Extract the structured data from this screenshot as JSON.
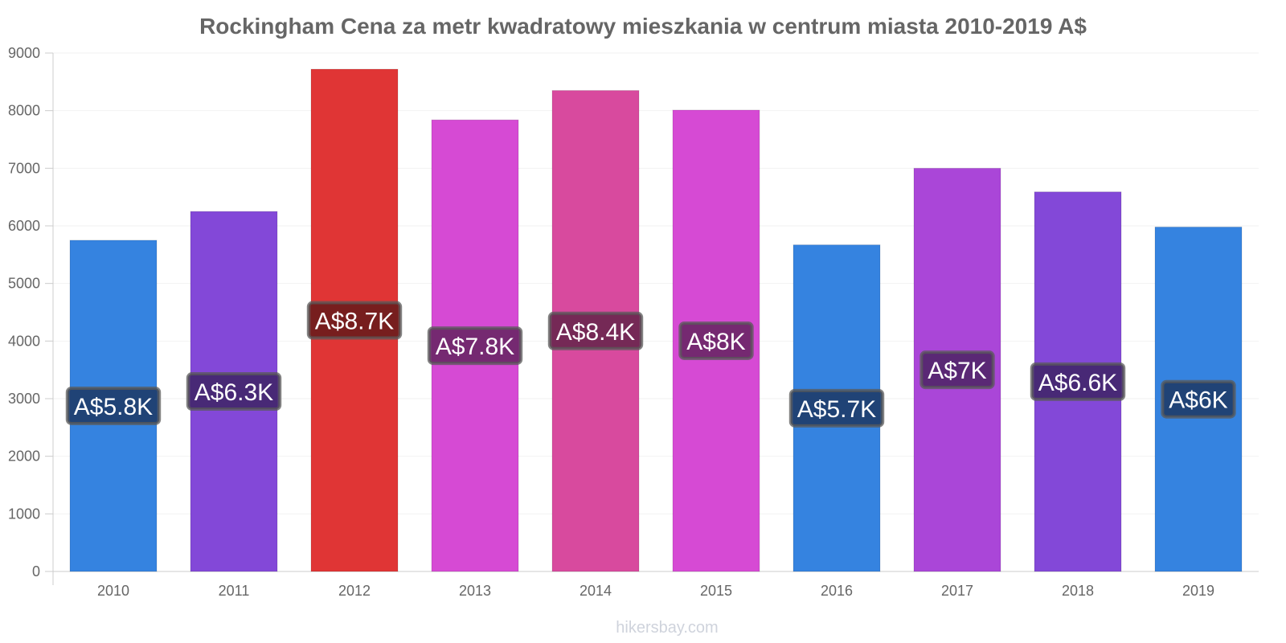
{
  "chart_data": {
    "type": "bar",
    "title": "Rockingham Cena za metr kwadratowy mieszkania w centrum miasta 2010-2019 A$",
    "xlabel": "",
    "ylabel": "",
    "categories": [
      "2010",
      "2011",
      "2012",
      "2013",
      "2014",
      "2015",
      "2016",
      "2017",
      "2018",
      "2019"
    ],
    "values": [
      5750,
      6250,
      8720,
      7840,
      8350,
      8010,
      5670,
      7000,
      6590,
      5980
    ],
    "data_labels": [
      "A$5.8K",
      "A$6.3K",
      "A$8.7K",
      "A$7.8K",
      "A$8.4K",
      "A$8K",
      "A$5.7K",
      "A$7K",
      "A$6.6K",
      "A$6K"
    ],
    "bar_colors": [
      "#3583e0",
      "#8348d8",
      "#e03535",
      "#d64ad4",
      "#d84a9e",
      "#d64ad4",
      "#3583e0",
      "#aa46d8",
      "#8348d8",
      "#3583e0"
    ],
    "label_box_colors": [
      "#1e3e6c",
      "#43276e",
      "#6e1c1c",
      "#6c2668",
      "#6c2650",
      "#6c2668",
      "#1e3e6c",
      "#54266c",
      "#43276e",
      "#1e3e6c"
    ],
    "ylim": [
      0,
      9000
    ],
    "yticks": [
      0,
      1000,
      2000,
      3000,
      4000,
      5000,
      6000,
      7000,
      8000,
      9000
    ],
    "grid": true,
    "legend": "none"
  },
  "watermark": "hikersbay.com"
}
